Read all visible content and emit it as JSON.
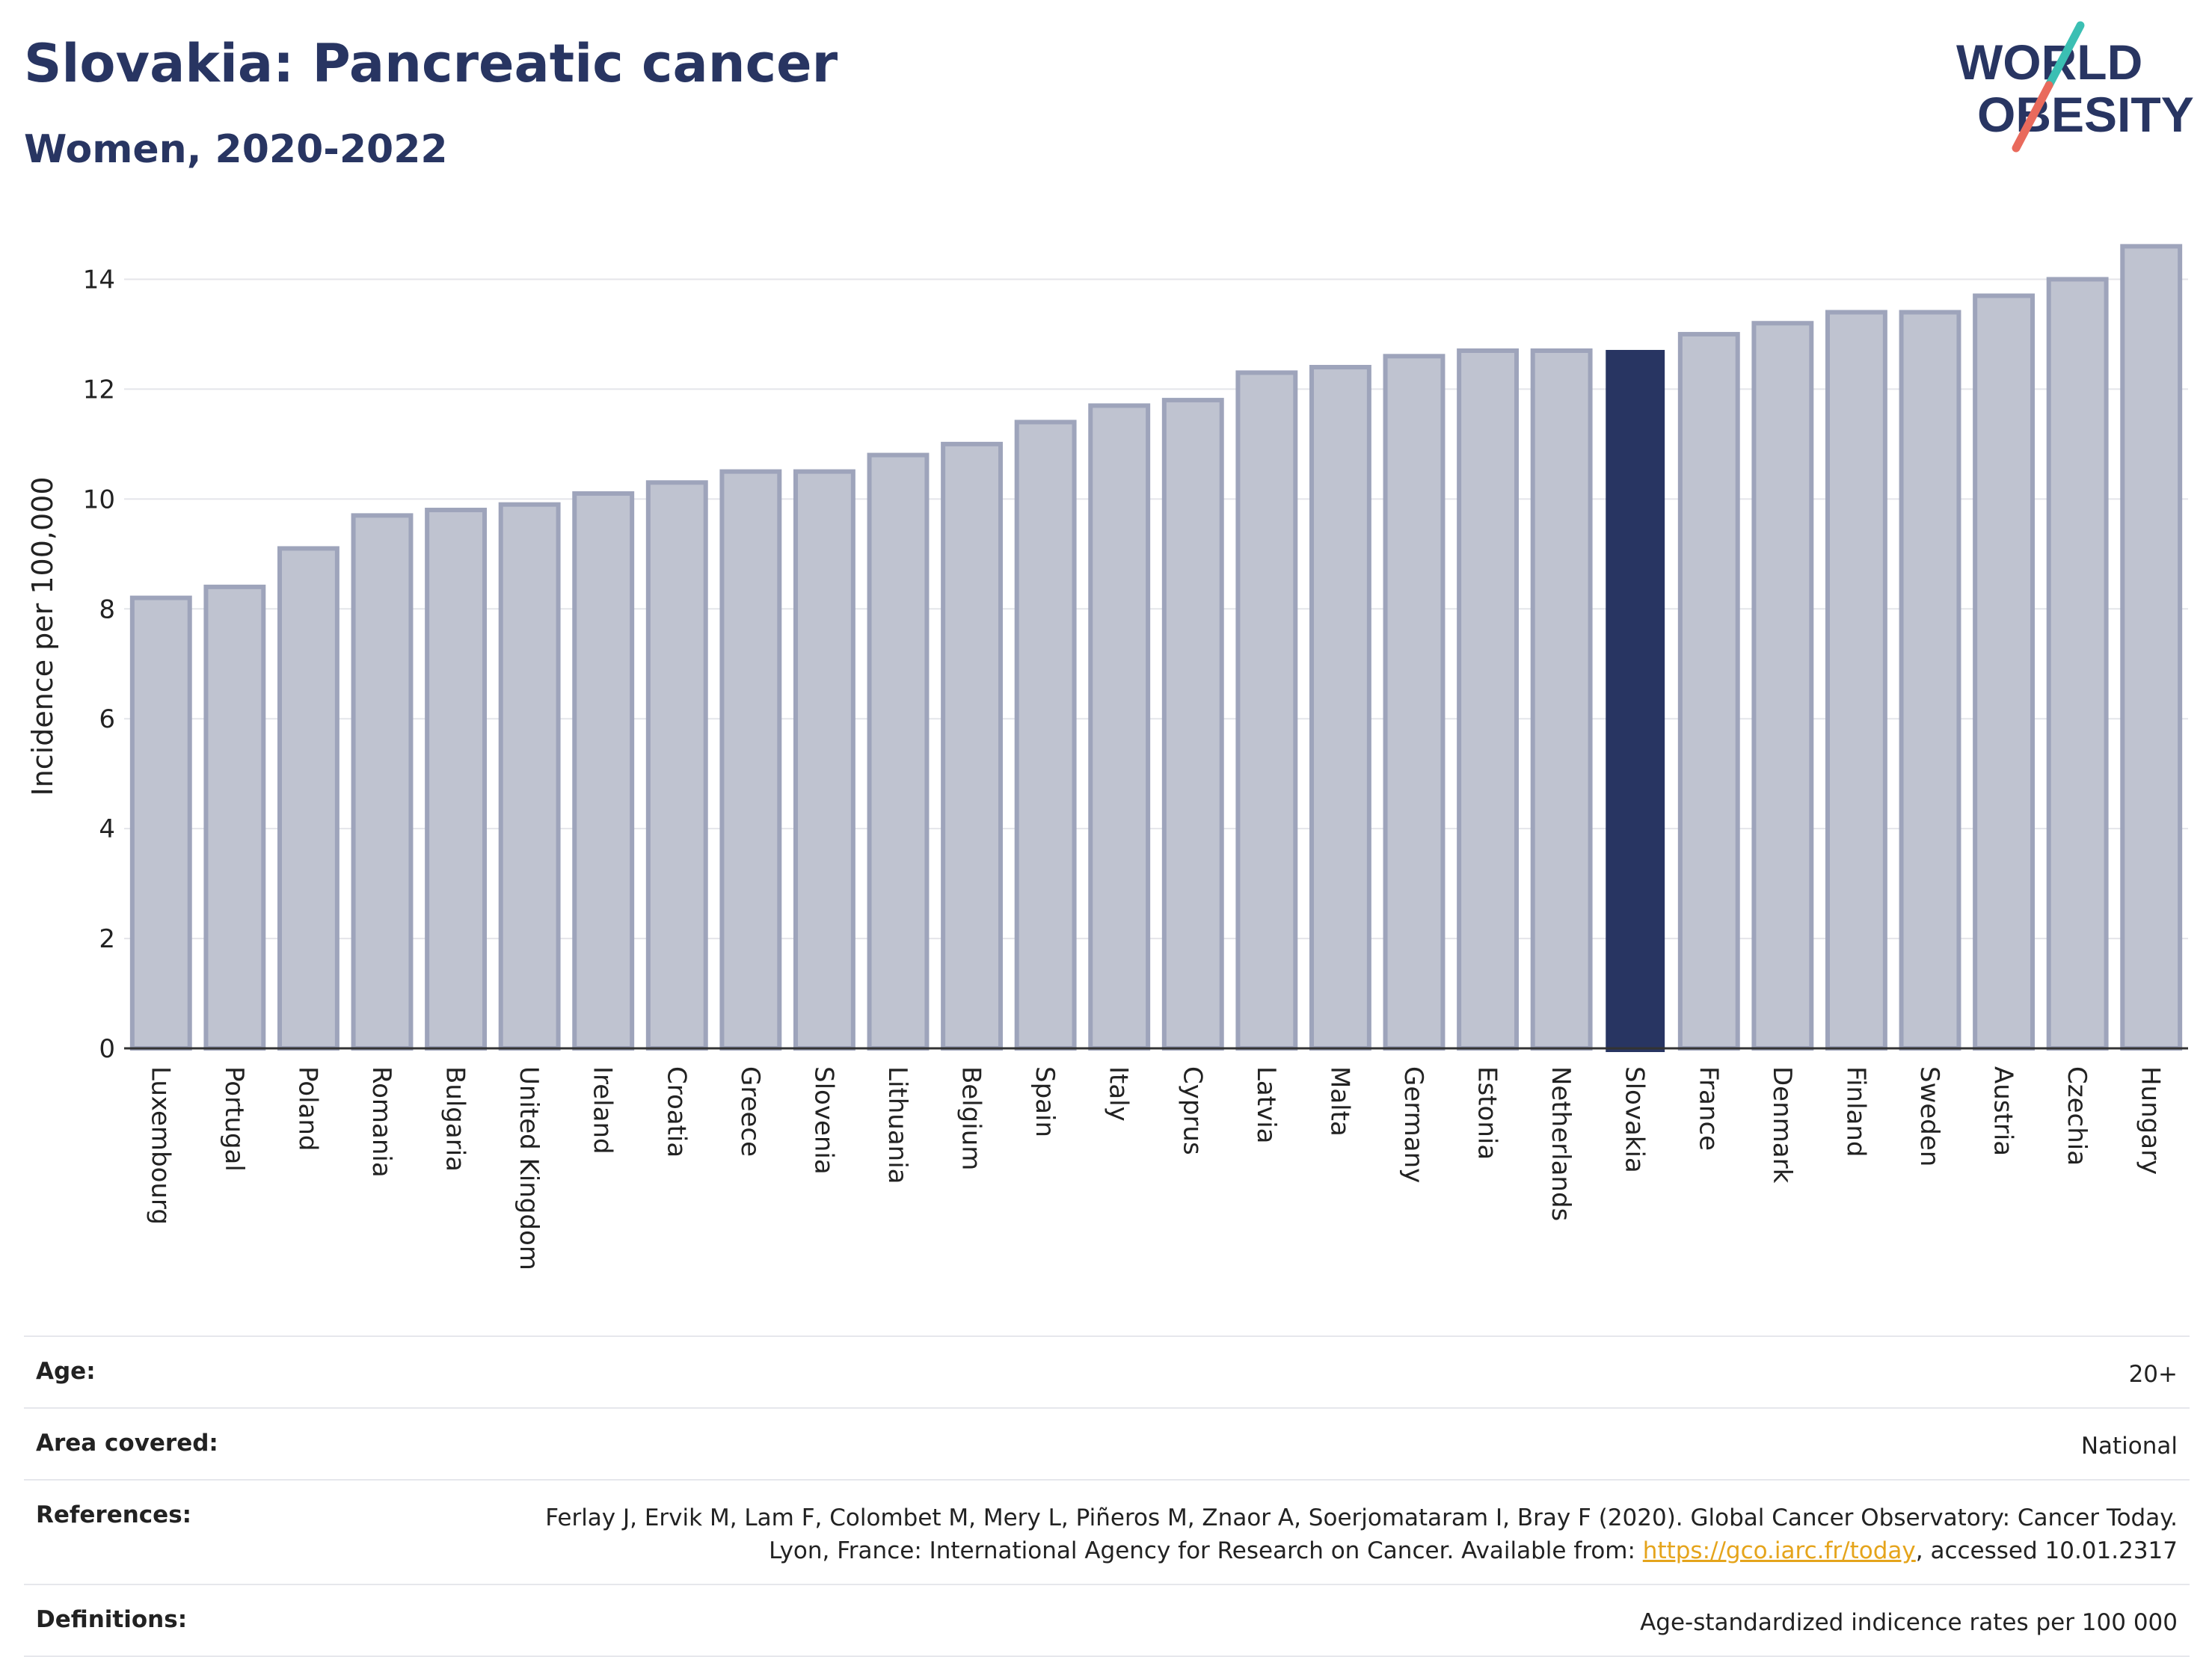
{
  "header": {
    "title": "Slovakia: Pancreatic cancer",
    "subtitle": "Women, 2020-2022"
  },
  "logo": {
    "line1": "WORLD",
    "line2": "OBESITY",
    "accent_teal": "#3bbfb3",
    "accent_coral": "#e96a5c",
    "text_color": "#283562"
  },
  "chart_data": {
    "type": "bar",
    "ylabel": "Incidence per 100,000",
    "xlabel": "",
    "ylim": [
      0,
      15
    ],
    "yticks": [
      0,
      2,
      4,
      6,
      8,
      10,
      12,
      14
    ],
    "grid": true,
    "highlight": "Slovakia",
    "colors": {
      "bar": "#bfc3d0",
      "bar_edge": "#9ea4bb",
      "highlight": "#283562"
    },
    "categories": [
      "Luxembourg",
      "Portugal",
      "Poland",
      "Romania",
      "Bulgaria",
      "United Kingdom",
      "Ireland",
      "Croatia",
      "Greece",
      "Slovenia",
      "Lithuania",
      "Belgium",
      "Spain",
      "Italy",
      "Cyprus",
      "Latvia",
      "Malta",
      "Germany",
      "Estonia",
      "Netherlands",
      "Slovakia",
      "France",
      "Denmark",
      "Finland",
      "Sweden",
      "Austria",
      "Czechia",
      "Hungary"
    ],
    "values": [
      8.2,
      8.4,
      9.1,
      9.7,
      9.8,
      9.9,
      10.1,
      10.3,
      10.5,
      10.5,
      10.8,
      11.0,
      11.4,
      11.7,
      11.8,
      12.3,
      12.4,
      12.6,
      12.7,
      12.7,
      12.7,
      13.0,
      13.2,
      13.4,
      13.4,
      13.7,
      14.0,
      14.6
    ]
  },
  "info": {
    "age_label": "Age:",
    "age_value": "20+",
    "area_label": "Area covered:",
    "area_value": "National",
    "references_label": "References:",
    "references_text_before": "Ferlay J, Ervik M, Lam F, Colombet M, Mery L, Piñeros M, Znaor A, Soerjomataram I, Bray F (2020). Global Cancer Observatory: Cancer Today. Lyon, France: International Agency for Research on Cancer. Available from: ",
    "references_link": "https://gco.iarc.fr/today",
    "references_text_after": ", accessed 10.01.2317",
    "definitions_label": "Definitions:",
    "definitions_value": "Age-standardized indicence rates per 100 000"
  }
}
